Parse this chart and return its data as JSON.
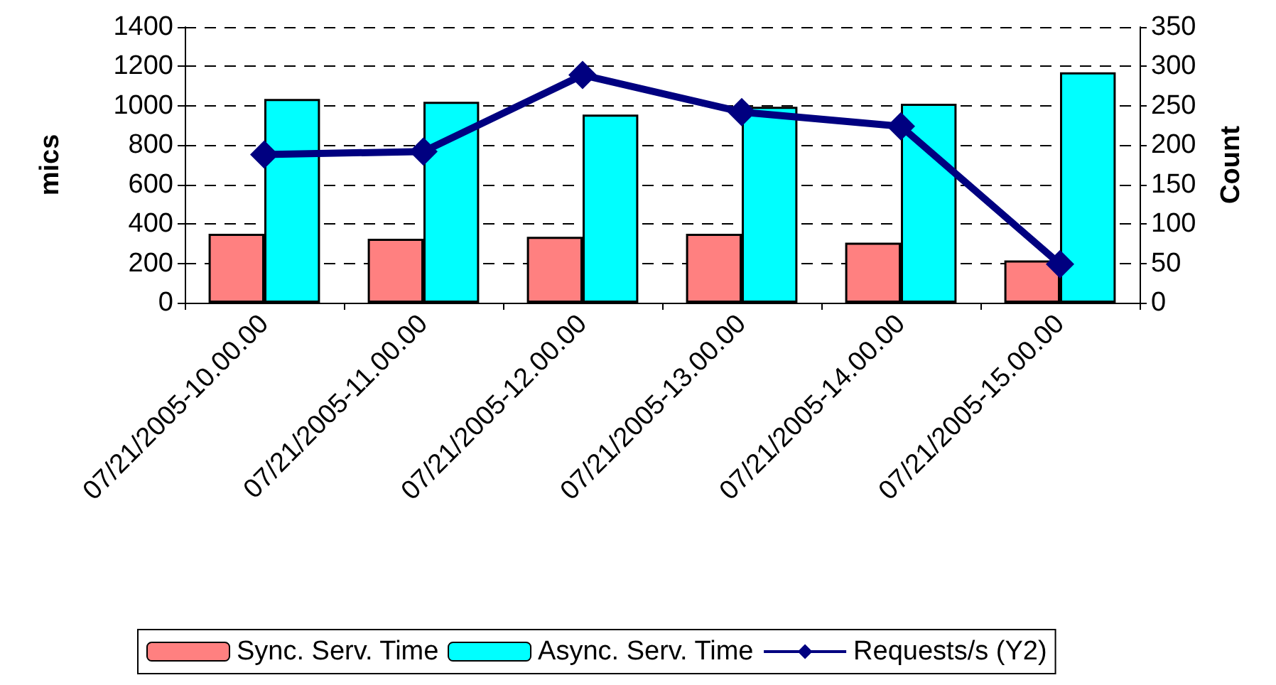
{
  "chart_data": {
    "type": "bar",
    "ylabel": "mics",
    "y2label": "Count",
    "categories": [
      "07/21/2005-10.00.00",
      "07/21/2005-11.00.00",
      "07/21/2005-12.00.00",
      "07/21/2005-13.00.00",
      "07/21/2005-14.00.00",
      "07/21/2005-15.00.00"
    ],
    "series": [
      {
        "name": "Sync. Serv. Time",
        "color": "#ff8080",
        "values": [
          350,
          325,
          335,
          350,
          305,
          215
        ]
      },
      {
        "name": "Async. Serv. Time",
        "color": "#00ffff",
        "values": [
          1035,
          1020,
          955,
          995,
          1010,
          1170
        ]
      },
      {
        "name": "Requests/s (Y2)",
        "type": "line",
        "axis": "y2",
        "color": "#000080",
        "marker": "diamond",
        "values": [
          188,
          192,
          289,
          242,
          224,
          49
        ]
      }
    ],
    "ylim": [
      0,
      1400
    ],
    "yticks": [
      0,
      200,
      400,
      600,
      800,
      1000,
      1200,
      1400
    ],
    "y2lim": [
      0,
      350
    ],
    "y2ticks": [
      0,
      50,
      100,
      150,
      200,
      250,
      300,
      350
    ],
    "grid": "y",
    "legend": "bottom"
  }
}
